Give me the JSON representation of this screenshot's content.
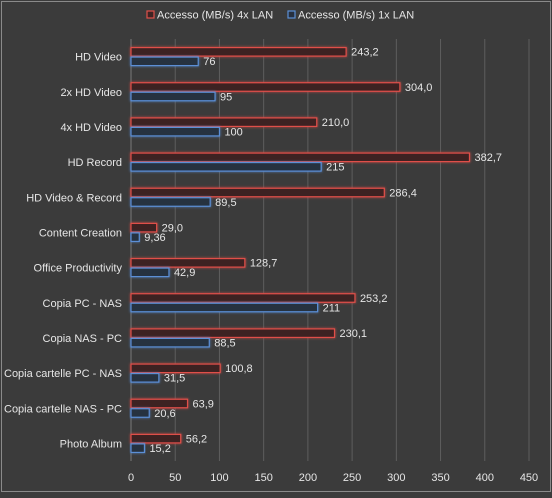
{
  "chart_data": {
    "type": "bar",
    "orientation": "horizontal",
    "categories": [
      "HD Video",
      "2x HD Video",
      "4x HD Video",
      "HD Record",
      "HD Video & Record",
      "Content Creation",
      "Office Productivity",
      "Copia PC - NAS",
      "Copia NAS - PC",
      "Copia cartelle PC - NAS",
      "Copia cartelle NAS - PC",
      "Photo Album"
    ],
    "series": [
      {
        "name": "Accesso (MB/s) 4x LAN",
        "color": "#c0504d",
        "values": [
          243.2,
          304.0,
          210.0,
          382.7,
          286.4,
          29.0,
          128.7,
          253.2,
          230.1,
          100.8,
          63.9,
          56.2
        ],
        "labels": [
          "243,2",
          "304,0",
          "210,0",
          "382,7",
          "286,4",
          "29,0",
          "128,7",
          "253,2",
          "230,1",
          "100,8",
          "63,9",
          "56,2"
        ]
      },
      {
        "name": "Accesso (MB/s) 1x LAN",
        "color": "#4f81bd",
        "values": [
          76,
          95,
          100,
          215,
          89.5,
          9.36,
          42.9,
          211,
          88.5,
          31.5,
          20.6,
          15.2
        ],
        "labels": [
          "76",
          "95",
          "100",
          "215",
          "89,5",
          "9,36",
          "42,9",
          "211",
          "88,5",
          "31,5",
          "20,6",
          "15,2"
        ]
      }
    ],
    "x_ticks": [
      "0",
      "50",
      "100",
      "150",
      "200",
      "250",
      "300",
      "350",
      "400",
      "450"
    ],
    "xlim": [
      0,
      450
    ],
    "grid": true,
    "legend_position": "top"
  }
}
